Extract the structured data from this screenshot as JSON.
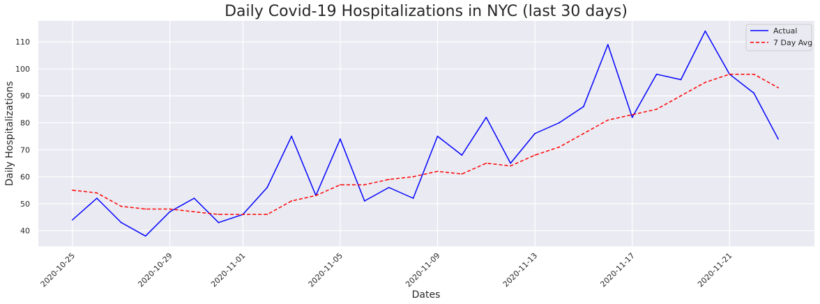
{
  "chart_data": {
    "type": "line",
    "title": "Daily Covid-19 Hospitalizations in NYC (last 30 days)",
    "xlabel": "Dates",
    "ylabel": "Daily Hospitalizations",
    "x": [
      "2020-10-25",
      "2020-10-26",
      "2020-10-27",
      "2020-10-28",
      "2020-10-29",
      "2020-10-30",
      "2020-10-31",
      "2020-11-01",
      "2020-11-02",
      "2020-11-03",
      "2020-11-04",
      "2020-11-05",
      "2020-11-06",
      "2020-11-07",
      "2020-11-08",
      "2020-11-09",
      "2020-11-10",
      "2020-11-11",
      "2020-11-12",
      "2020-11-13",
      "2020-11-14",
      "2020-11-15",
      "2020-11-16",
      "2020-11-17",
      "2020-11-18",
      "2020-11-19",
      "2020-11-20",
      "2020-11-21",
      "2020-11-22",
      "2020-11-23"
    ],
    "x_ticks": [
      "2020-10-25",
      "2020-10-29",
      "2020-11-01",
      "2020-11-05",
      "2020-11-09",
      "2020-11-13",
      "2020-11-17",
      "2020-11-21"
    ],
    "y_ticks": [
      40,
      50,
      60,
      70,
      80,
      90,
      100,
      110
    ],
    "ylim": [
      34.2,
      117.8
    ],
    "grid": true,
    "legend_position": "top-right",
    "series": [
      {
        "name": "Actual",
        "color": "#0000ff",
        "style": "solid",
        "values": [
          44,
          52,
          43,
          38,
          47,
          52,
          43,
          46,
          56,
          75,
          53,
          74,
          51,
          56,
          52,
          75,
          68,
          82,
          65,
          76,
          80,
          86,
          109,
          82,
          98,
          96,
          114,
          98,
          91,
          74
        ]
      },
      {
        "name": "7 Day Avg",
        "color": "#ff0000",
        "style": "dashed",
        "values": [
          55,
          54,
          49,
          48,
          48,
          47,
          46,
          46,
          46,
          51,
          53,
          57,
          57,
          59,
          60,
          62,
          61,
          65,
          64,
          68,
          71,
          76,
          81,
          83,
          85,
          90,
          95,
          98,
          98,
          93
        ]
      }
    ]
  }
}
